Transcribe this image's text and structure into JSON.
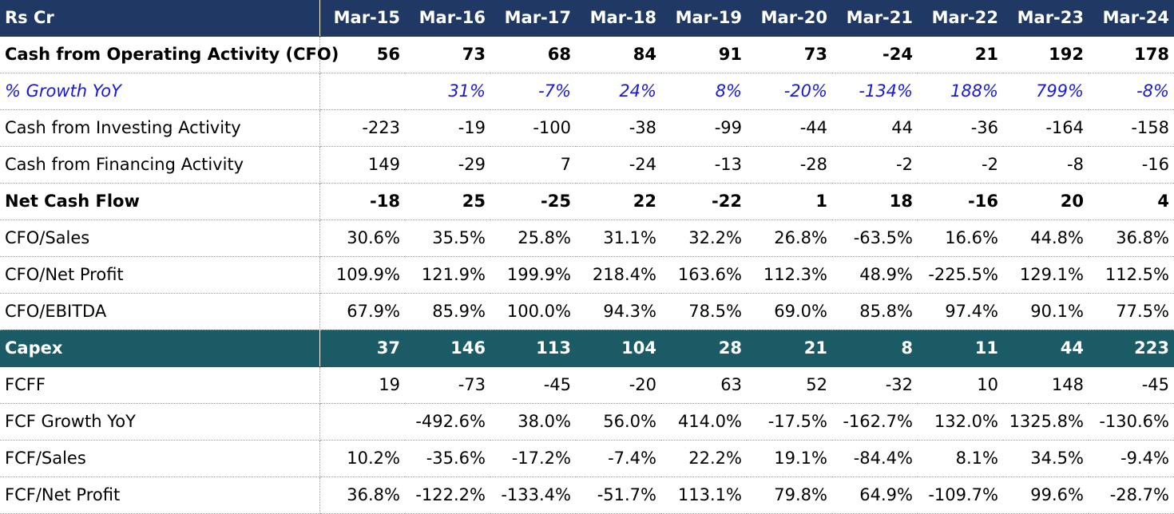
{
  "header": {
    "label": "Rs Cr",
    "years": [
      "Mar-15",
      "Mar-16",
      "Mar-17",
      "Mar-18",
      "Mar-19",
      "Mar-20",
      "Mar-21",
      "Mar-22",
      "Mar-23",
      "Mar-24"
    ]
  },
  "rows": [
    {
      "label": "Cash from Operating Activity (CFO)",
      "values": [
        "56",
        "73",
        "68",
        "84",
        "91",
        "73",
        "-24",
        "21",
        "192",
        "178"
      ]
    },
    {
      "label": "% Growth YoY",
      "values": [
        "",
        "31%",
        "-7%",
        "24%",
        "8%",
        "-20%",
        "-134%",
        "188%",
        "799%",
        "-8%"
      ]
    },
    {
      "label": "Cash from Investing Activity",
      "values": [
        "-223",
        "-19",
        "-100",
        "-38",
        "-99",
        "-44",
        "44",
        "-36",
        "-164",
        "-158"
      ]
    },
    {
      "label": "Cash from Financing Activity",
      "values": [
        "149",
        "-29",
        "7",
        "-24",
        "-13",
        "-28",
        "-2",
        "-2",
        "-8",
        "-16"
      ]
    },
    {
      "label": "Net Cash Flow",
      "values": [
        "-18",
        "25",
        "-25",
        "22",
        "-22",
        "1",
        "18",
        "-16",
        "20",
        "4"
      ]
    },
    {
      "label": "CFO/Sales",
      "values": [
        "30.6%",
        "35.5%",
        "25.8%",
        "31.1%",
        "32.2%",
        "26.8%",
        "-63.5%",
        "16.6%",
        "44.8%",
        "36.8%"
      ]
    },
    {
      "label": "CFO/Net Profit",
      "values": [
        "109.9%",
        "121.9%",
        "199.9%",
        "218.4%",
        "163.6%",
        "112.3%",
        "48.9%",
        "-225.5%",
        "129.1%",
        "112.5%"
      ]
    },
    {
      "label": "CFO/EBITDA",
      "values": [
        "67.9%",
        "85.9%",
        "100.0%",
        "94.3%",
        "78.5%",
        "69.0%",
        "85.8%",
        "97.4%",
        "90.1%",
        "77.5%"
      ]
    },
    {
      "label": "Capex",
      "values": [
        "37",
        "146",
        "113",
        "104",
        "28",
        "21",
        "8",
        "11",
        "44",
        "223"
      ]
    },
    {
      "label": "FCFF",
      "values": [
        "19",
        "-73",
        "-45",
        "-20",
        "63",
        "52",
        "-32",
        "10",
        "148",
        "-45"
      ]
    },
    {
      "label": "FCF Growth YoY",
      "values": [
        "",
        "-492.6%",
        "38.0%",
        "56.0%",
        "414.0%",
        "-17.5%",
        "-162.7%",
        "132.0%",
        "1325.8%",
        "-130.6%"
      ]
    },
    {
      "label": "FCF/Sales",
      "values": [
        "10.2%",
        "-35.6%",
        "-17.2%",
        "-7.4%",
        "22.2%",
        "19.1%",
        "-84.4%",
        "8.1%",
        "34.5%",
        "-9.4%"
      ]
    },
    {
      "label": "FCF/Net Profit",
      "values": [
        "36.8%",
        "-122.2%",
        "-133.4%",
        "-51.7%",
        "113.1%",
        "79.8%",
        "64.9%",
        "-109.7%",
        "99.6%",
        "-28.7%"
      ]
    }
  ],
  "colors": {
    "header_bg": "#1f3864",
    "capex_bg": "#1a5b66",
    "growth_text": "#1a1ad6"
  }
}
